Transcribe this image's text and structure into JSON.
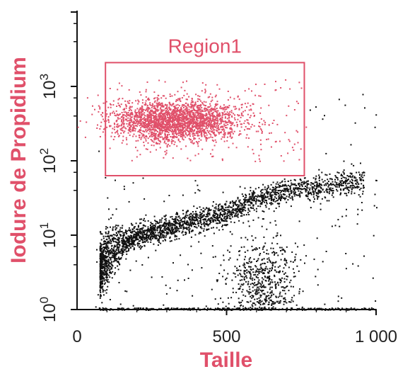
{
  "chart_data": {
    "type": "scatter",
    "title": "",
    "xlabel": "Taille",
    "ylabel": "Iodure de Propidium",
    "xlim": [
      0,
      1000
    ],
    "ylim_decades": [
      0,
      3
    ],
    "y_scale": "log-decades",
    "x_ticks": [
      {
        "value": 0,
        "label": "0"
      },
      {
        "value": 500,
        "label": "500"
      },
      {
        "value": 1000,
        "label": "1 000"
      }
    ],
    "y_ticks": [
      {
        "decade": 0,
        "base": "10",
        "exp": "0"
      },
      {
        "decade": 1,
        "base": "10",
        "exp": "1"
      },
      {
        "decade": 2,
        "base": "10",
        "exp": "2"
      },
      {
        "decade": 3,
        "base": "10",
        "exp": "3"
      }
    ],
    "grid": false,
    "colors": {
      "axes": "#111111",
      "points_main": "#111111",
      "points_region": "#e0506a",
      "axis_titles": "#e0506a"
    },
    "region": {
      "label": "Region1",
      "x_range": [
        95,
        760
      ],
      "y_decade_range": [
        1.8,
        3.32
      ]
    },
    "series": [
      {
        "description_key": "main",
        "color": "#111111",
        "clusters": [
          {
            "shape": "curve",
            "n": 2600,
            "x": [
              75,
              960
            ],
            "y_decade_at_x": [
              [
                75,
                0.55
              ],
              [
                130,
                0.85
              ],
              [
                200,
                1.0
              ],
              [
                300,
                1.1
              ],
              [
                400,
                1.2
              ],
              [
                500,
                1.3
              ],
              [
                600,
                1.5
              ],
              [
                700,
                1.6
              ],
              [
                800,
                1.65
              ],
              [
                960,
                1.75
              ]
            ],
            "spread": 0.08
          },
          {
            "shape": "blob",
            "n": 600,
            "x_center": 620,
            "y_center": 0.35,
            "x_sd": 60,
            "y_sd": 0.3
          },
          {
            "shape": "scatter",
            "n": 250,
            "x": [
              60,
              1000
            ],
            "y": [
              0,
              2.9
            ]
          },
          {
            "shape": "baseline",
            "n": 300,
            "x": [
              70,
              1000
            ],
            "y": [
              0,
              0.03
            ]
          }
        ]
      },
      {
        "description_key": "region",
        "color": "#e0506a",
        "clusters": [
          {
            "shape": "blob",
            "n": 2400,
            "x_center": 330,
            "y_center": 2.55,
            "x_sd": 110,
            "y_sd": 0.14
          },
          {
            "shape": "scatter",
            "n": 150,
            "x": [
              100,
              750
            ],
            "y": [
              2.0,
              3.1
            ]
          }
        ]
      }
    ]
  }
}
